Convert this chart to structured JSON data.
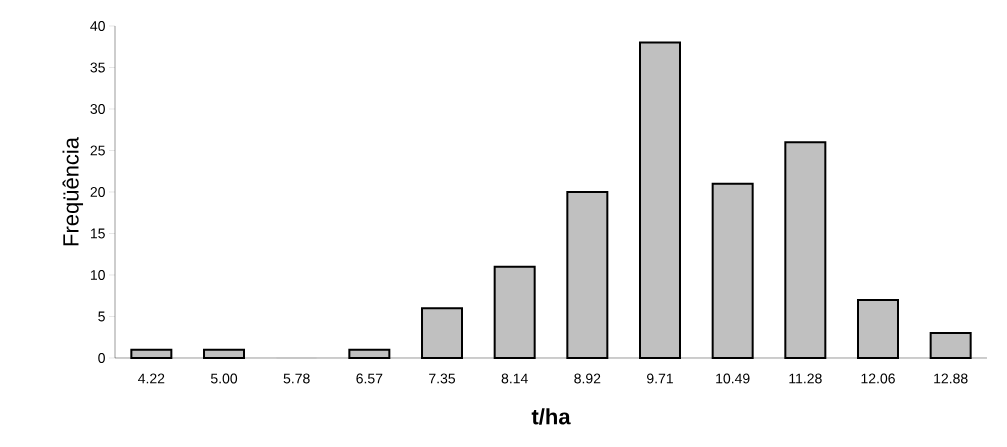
{
  "chart_data": {
    "type": "bar",
    "xlabel": "t/ha",
    "ylabel": "Freqüência",
    "categories": [
      "4.22",
      "5.00",
      "5.78",
      "6.57",
      "7.35",
      "8.14",
      "8.92",
      "9.71",
      "10.49",
      "11.28",
      "12.06",
      "12.88"
    ],
    "values": [
      1,
      1,
      0,
      1,
      6,
      11,
      20,
      38,
      21,
      26,
      7,
      3
    ],
    "color": "#c0c0c0",
    "ylim": [
      0,
      40
    ],
    "yticks": [
      0,
      5,
      10,
      15,
      20,
      25,
      30,
      35,
      40
    ],
    "grid": false
  }
}
